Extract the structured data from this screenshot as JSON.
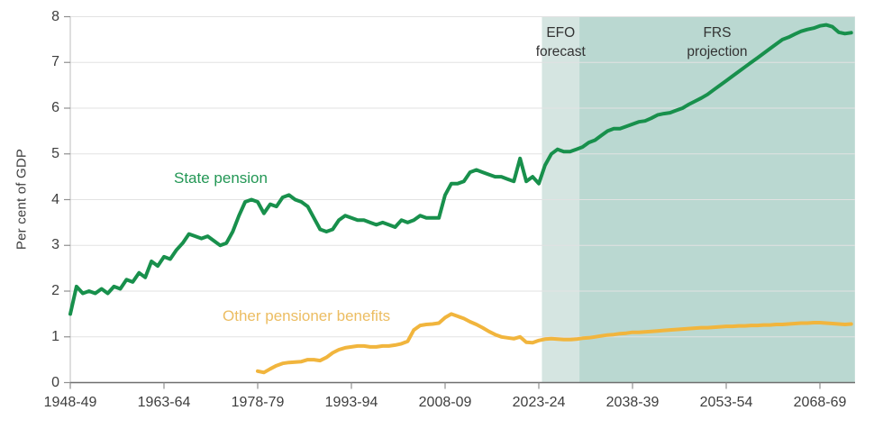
{
  "chart_data": {
    "type": "line",
    "title": "",
    "y_axis": {
      "title": "Per cent of GDP",
      "ylim": [
        0,
        8
      ],
      "ticks": [
        {
          "value": 0,
          "label": "0"
        },
        {
          "value": 1,
          "label": "1"
        },
        {
          "value": 2,
          "label": "2"
        },
        {
          "value": 3,
          "label": "3"
        },
        {
          "value": 4,
          "label": "4"
        },
        {
          "value": 5,
          "label": "5"
        },
        {
          "value": 6,
          "label": "6"
        },
        {
          "value": 7,
          "label": "7"
        },
        {
          "value": 8,
          "label": "8"
        }
      ],
      "grid": true
    },
    "x_axis": {
      "unit": "fiscal year",
      "range_years": [
        1948,
        2073.6
      ],
      "ticks": [
        {
          "year": 1948,
          "label": "1948-49"
        },
        {
          "year": 1963,
          "label": "1963-64"
        },
        {
          "year": 1978,
          "label": "1978-79"
        },
        {
          "year": 1993,
          "label": "1993-94"
        },
        {
          "year": 2008,
          "label": "2008-09"
        },
        {
          "year": 2023,
          "label": "2023-24"
        },
        {
          "year": 2038,
          "label": "2038-39"
        },
        {
          "year": 2053,
          "label": "2053-54"
        },
        {
          "year": 2068,
          "label": "2068-69"
        }
      ]
    },
    "bands": [
      {
        "name": "EFO forecast",
        "label_lines": [
          "EFO",
          "forecast"
        ],
        "from_year": 2023.5,
        "to_year": 2029.5,
        "color": "#d5e5e1"
      },
      {
        "name": "FRS projection",
        "label_lines": [
          "FRS",
          "projection"
        ],
        "from_year": 2029.5,
        "to_year": 2073.6,
        "color": "#bad8d1"
      }
    ],
    "series": [
      {
        "name": "State pension",
        "color": "#18904c",
        "label_color": "#239755",
        "start_year": 1948,
        "values": [
          1.5,
          2.1,
          1.95,
          2.0,
          1.95,
          2.05,
          1.95,
          2.1,
          2.05,
          2.25,
          2.2,
          2.4,
          2.3,
          2.65,
          2.55,
          2.75,
          2.7,
          2.9,
          3.05,
          3.25,
          3.2,
          3.15,
          3.2,
          3.1,
          3.0,
          3.05,
          3.3,
          3.65,
          3.95,
          4.0,
          3.95,
          3.7,
          3.9,
          3.85,
          4.05,
          4.1,
          4.0,
          3.95,
          3.85,
          3.6,
          3.35,
          3.3,
          3.35,
          3.55,
          3.65,
          3.6,
          3.55,
          3.55,
          3.5,
          3.45,
          3.5,
          3.45,
          3.4,
          3.55,
          3.5,
          3.55,
          3.65,
          3.6,
          3.6,
          3.6,
          4.1,
          4.35,
          4.35,
          4.4,
          4.6,
          4.65,
          4.6,
          4.55,
          4.5,
          4.5,
          4.45,
          4.4,
          4.9,
          4.4,
          4.5,
          4.35,
          4.75,
          5.0,
          5.1,
          5.05,
          5.05,
          5.1,
          5.15,
          5.25,
          5.3,
          5.4,
          5.5,
          5.55,
          5.55,
          5.6,
          5.65,
          5.7,
          5.72,
          5.78,
          5.85,
          5.88,
          5.9,
          5.95,
          6.0,
          6.08,
          6.15,
          6.22,
          6.3,
          6.4,
          6.5,
          6.6,
          6.7,
          6.8,
          6.9,
          7.0,
          7.1,
          7.2,
          7.3,
          7.4,
          7.5,
          7.55,
          7.62,
          7.68,
          7.72,
          7.75,
          7.8,
          7.82,
          7.78,
          7.66,
          7.63,
          7.65
        ]
      },
      {
        "name": "Other pensioner benefits",
        "color": "#f1b53d",
        "label_color": "#ecbd62",
        "start_year": 1978,
        "values": [
          0.25,
          0.22,
          0.3,
          0.37,
          0.42,
          0.44,
          0.45,
          0.46,
          0.5,
          0.5,
          0.48,
          0.55,
          0.65,
          0.72,
          0.76,
          0.78,
          0.8,
          0.8,
          0.78,
          0.78,
          0.8,
          0.8,
          0.82,
          0.85,
          0.9,
          1.15,
          1.25,
          1.27,
          1.28,
          1.3,
          1.42,
          1.5,
          1.45,
          1.4,
          1.33,
          1.27,
          1.2,
          1.12,
          1.05,
          1.0,
          0.98,
          0.96,
          1.0,
          0.88,
          0.87,
          0.92,
          0.95,
          0.96,
          0.95,
          0.94,
          0.94,
          0.95,
          0.97,
          0.98,
          1.0,
          1.02,
          1.04,
          1.05,
          1.07,
          1.08,
          1.1,
          1.1,
          1.11,
          1.12,
          1.13,
          1.14,
          1.15,
          1.16,
          1.17,
          1.18,
          1.19,
          1.2,
          1.2,
          1.21,
          1.22,
          1.23,
          1.23,
          1.24,
          1.24,
          1.25,
          1.25,
          1.26,
          1.26,
          1.27,
          1.27,
          1.28,
          1.29,
          1.3,
          1.3,
          1.31,
          1.31,
          1.3,
          1.29,
          1.28,
          1.27,
          1.28
        ]
      }
    ],
    "colors": {
      "gridline": "#e2e2e2",
      "x_axis_line": "#6f6f6f",
      "y_axis_line": "#c8c8c8",
      "tick_mark": "#8f8f8f",
      "text": "#3e3e3e"
    },
    "legend_position": "inline-labels"
  }
}
